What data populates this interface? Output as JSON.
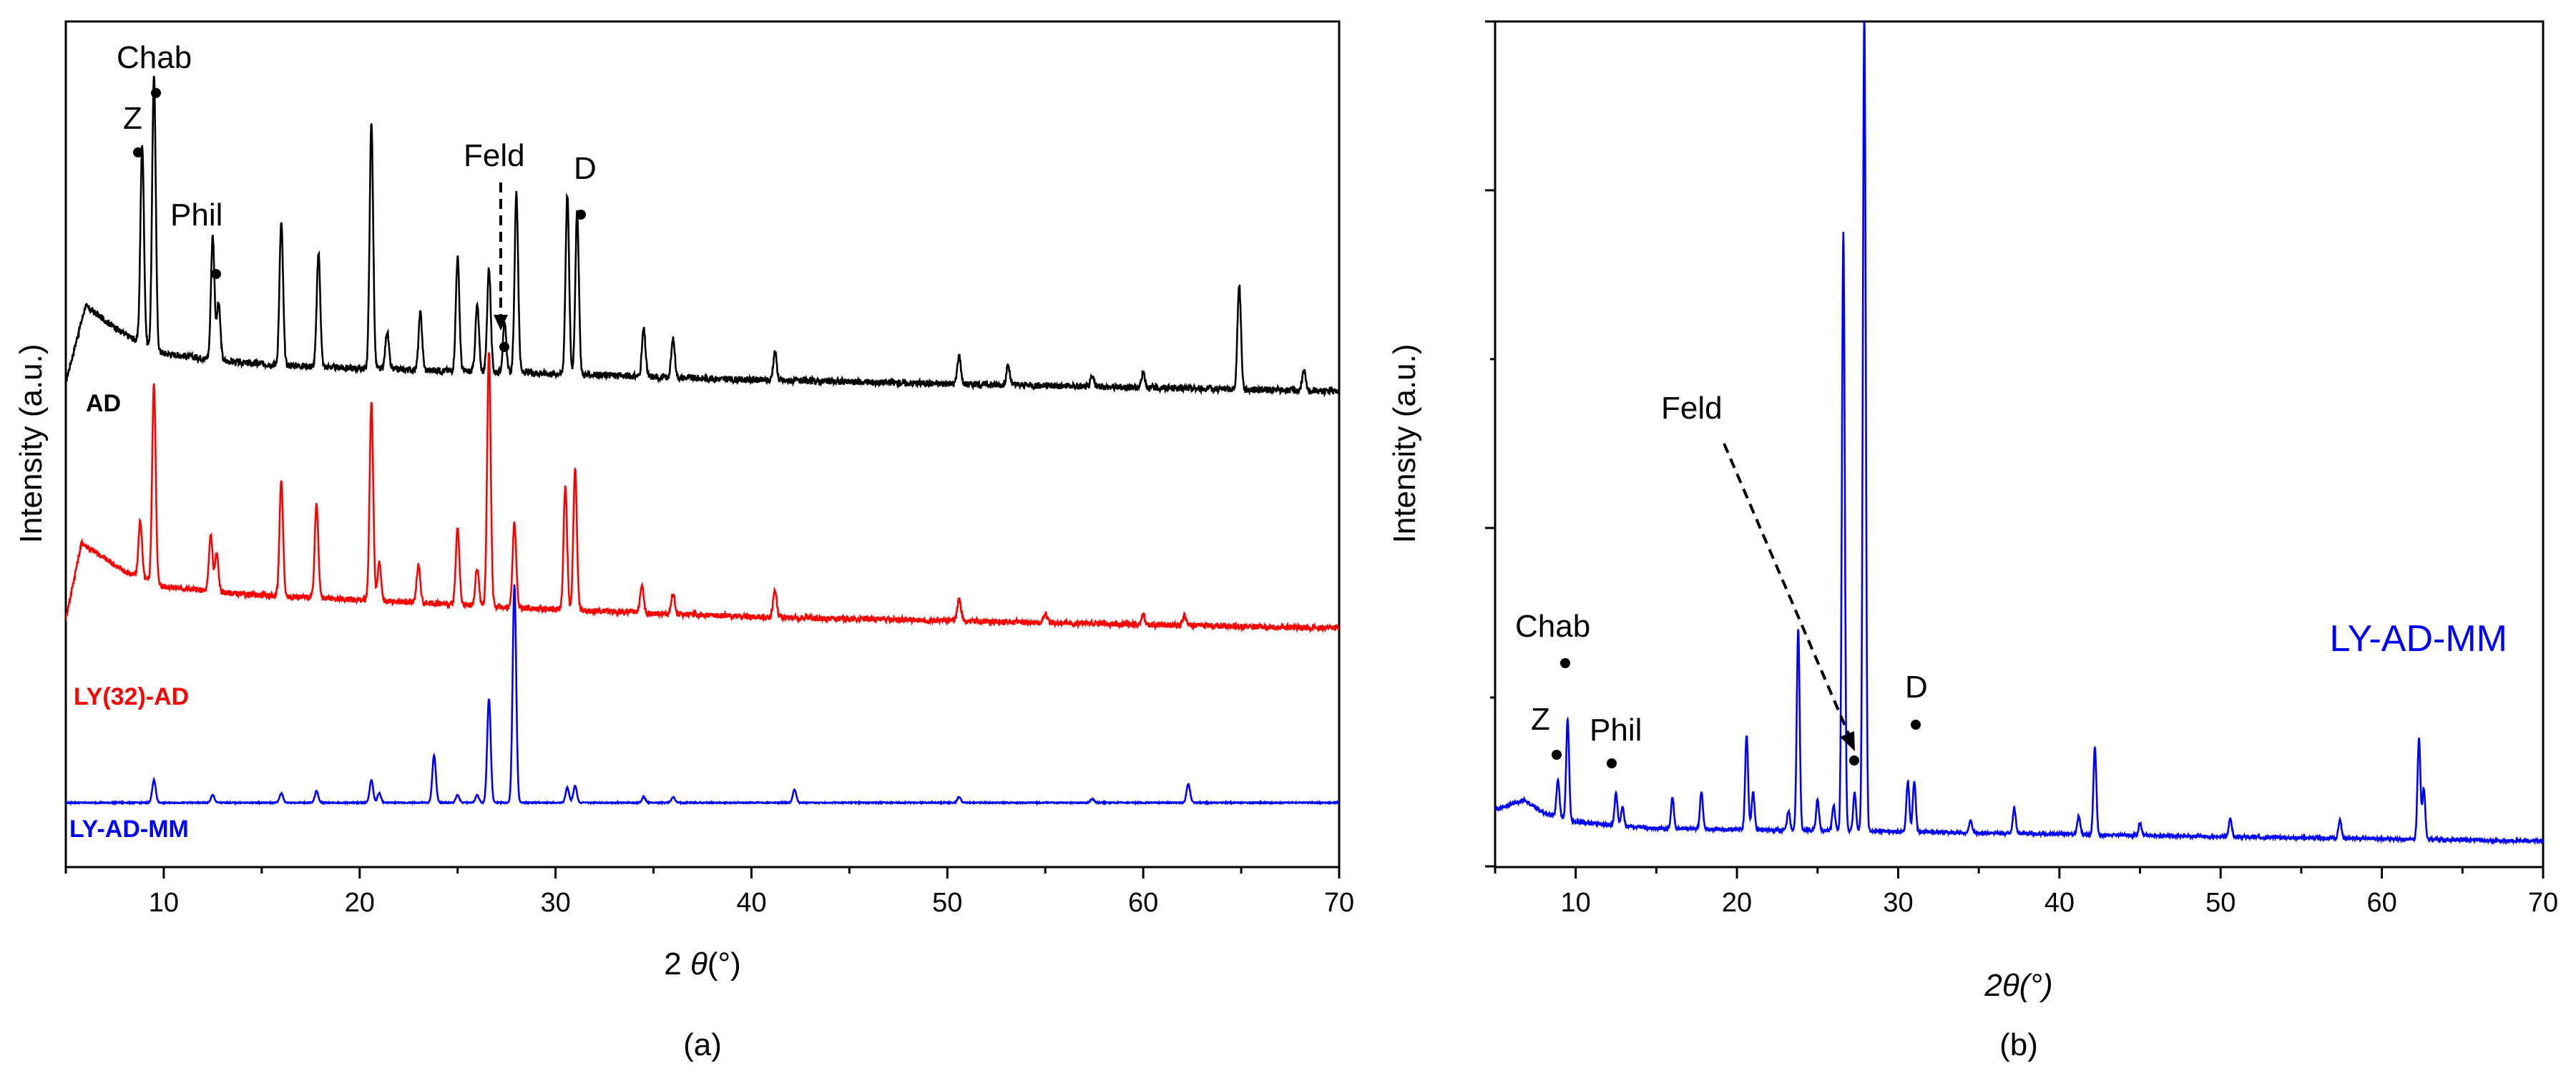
{
  "chart_data": [
    {
      "panel": "(a)",
      "type": "line",
      "xlabel_prefix": "2 ",
      "xlabel_theta": "θ",
      "xlabel_suffix": "(°)",
      "ylabel": "Intensity (a.u.)",
      "xlim": [
        5,
        70
      ],
      "xticks": [
        10,
        20,
        30,
        40,
        50,
        60,
        70
      ],
      "grid": false,
      "yticks_shown": false,
      "series": [
        {
          "name": "AD",
          "color": "#000000",
          "baseline": 0.12,
          "offset": 2.05,
          "noise": 0.035,
          "background": [
            [
              5,
              0.05
            ],
            [
              6,
              0.45
            ],
            [
              8,
              0.3
            ],
            [
              10,
              0.2
            ],
            [
              14,
              0.15
            ],
            [
              20,
              0.12
            ],
            [
              28,
              0.1
            ],
            [
              40,
              0.06
            ],
            [
              70,
              0.0
            ]
          ],
          "peaks": [
            [
              8.9,
              1.05
            ],
            [
              9.5,
              1.45
            ],
            [
              12.5,
              0.65
            ],
            [
              12.8,
              0.3
            ],
            [
              16.0,
              0.75
            ],
            [
              17.9,
              0.6
            ],
            [
              20.6,
              1.3
            ],
            [
              21.4,
              0.2
            ],
            [
              23.1,
              0.3
            ],
            [
              25.0,
              0.6
            ],
            [
              26.0,
              0.35
            ],
            [
              26.6,
              0.55
            ],
            [
              27.4,
              0.25
            ],
            [
              28.0,
              0.95
            ],
            [
              30.6,
              0.95
            ],
            [
              31.1,
              0.85
            ],
            [
              34.5,
              0.25
            ],
            [
              36.0,
              0.2
            ],
            [
              41.2,
              0.15
            ],
            [
              50.6,
              0.15
            ],
            [
              53.1,
              0.1
            ],
            [
              57.4,
              0.05
            ],
            [
              60.0,
              0.08
            ],
            [
              64.9,
              0.55
            ],
            [
              68.2,
              0.1
            ]
          ]
        },
        {
          "name": "LY(32)-AD",
          "color": "#ff0000",
          "baseline": 0.06,
          "offset": 0.86,
          "noise": 0.03,
          "background": [
            [
              5,
              0.05
            ],
            [
              5.8,
              0.45
            ],
            [
              8,
              0.3
            ],
            [
              10,
              0.22
            ],
            [
              14,
              0.18
            ],
            [
              20,
              0.15
            ],
            [
              30,
              0.1
            ],
            [
              40,
              0.06
            ],
            [
              70,
              0.0
            ]
          ],
          "peaks": [
            [
              8.8,
              0.3
            ],
            [
              9.5,
              1.05
            ],
            [
              12.4,
              0.3
            ],
            [
              12.7,
              0.2
            ],
            [
              16.0,
              0.6
            ],
            [
              17.8,
              0.5
            ],
            [
              20.6,
              1.05
            ],
            [
              21.0,
              0.2
            ],
            [
              23.0,
              0.2
            ],
            [
              25.0,
              0.4
            ],
            [
              26.0,
              0.2
            ],
            [
              26.6,
              1.35
            ],
            [
              27.9,
              0.45
            ],
            [
              30.5,
              0.65
            ],
            [
              31.0,
              0.75
            ],
            [
              34.4,
              0.15
            ],
            [
              36.0,
              0.1
            ],
            [
              41.2,
              0.15
            ],
            [
              50.6,
              0.12
            ],
            [
              55.0,
              0.05
            ],
            [
              60.0,
              0.05
            ],
            [
              62.1,
              0.05
            ]
          ]
        },
        {
          "name": "LY-AD-MM",
          "color": "#0000ff",
          "baseline": 0.0,
          "offset": 0.0,
          "noise": 0.006,
          "background": [
            [
              5,
              0.0
            ],
            [
              70,
              0.0
            ]
          ],
          "peaks": [
            [
              9.5,
              0.12
            ],
            [
              12.5,
              0.04
            ],
            [
              16.0,
              0.05
            ],
            [
              17.8,
              0.06
            ],
            [
              20.6,
              0.12
            ],
            [
              21.0,
              0.05
            ],
            [
              23.8,
              0.25
            ],
            [
              25.0,
              0.04
            ],
            [
              26.0,
              0.04
            ],
            [
              26.6,
              0.55
            ],
            [
              27.9,
              1.15
            ],
            [
              30.6,
              0.08
            ],
            [
              31.0,
              0.09
            ],
            [
              34.5,
              0.03
            ],
            [
              36.0,
              0.03
            ],
            [
              42.2,
              0.07
            ],
            [
              50.6,
              0.03
            ],
            [
              57.4,
              0.02
            ],
            [
              62.3,
              0.1
            ]
          ]
        }
      ],
      "annotations": {
        "chab": "Chab",
        "z": "Z",
        "phil": "Phil",
        "feld": "Feld",
        "d": "D"
      }
    },
    {
      "panel": "(b)",
      "type": "line",
      "xlabel": "2θ(°)",
      "ylabel": "Intensity (a.u.)",
      "xlim": [
        5,
        70
      ],
      "xticks": [
        10,
        20,
        30,
        40,
        50,
        60,
        70
      ],
      "grid": false,
      "yticks_shown": false,
      "inset_label": "LY-AD-MM",
      "series": [
        {
          "name": "LY-AD-MM",
          "color": "#0000ff",
          "baseline": 0.0,
          "offset": 0.0,
          "noise": 0.005,
          "background": [
            [
              5,
              0.055
            ],
            [
              6.8,
              0.07
            ],
            [
              8,
              0.05
            ],
            [
              10,
              0.035
            ],
            [
              15,
              0.025
            ],
            [
              30,
              0.02
            ],
            [
              50,
              0.012
            ],
            [
              70,
              0.005
            ]
          ],
          "peaks": [
            [
              8.9,
              0.06
            ],
            [
              9.5,
              0.16
            ],
            [
              12.5,
              0.05
            ],
            [
              12.9,
              0.03
            ],
            [
              16.0,
              0.05
            ],
            [
              17.8,
              0.06
            ],
            [
              20.6,
              0.15
            ],
            [
              21.0,
              0.06
            ],
            [
              23.2,
              0.03
            ],
            [
              23.8,
              0.32
            ],
            [
              25.0,
              0.05
            ],
            [
              26.0,
              0.04
            ],
            [
              26.6,
              0.95
            ],
            [
              27.3,
              0.06
            ],
            [
              27.9,
              1.3
            ],
            [
              30.6,
              0.08
            ],
            [
              31.0,
              0.08
            ],
            [
              34.5,
              0.02
            ],
            [
              37.2,
              0.04
            ],
            [
              41.2,
              0.03
            ],
            [
              42.2,
              0.14
            ],
            [
              45.0,
              0.02
            ],
            [
              50.6,
              0.03
            ],
            [
              57.4,
              0.03
            ],
            [
              62.3,
              0.16
            ],
            [
              62.6,
              0.08
            ]
          ]
        }
      ],
      "annotations": {
        "chab": "Chab",
        "z": "Z",
        "phil": "Phil",
        "feld": "Feld",
        "d": "D"
      }
    }
  ],
  "captions": {
    "a": "(a)",
    "b": "(b)"
  }
}
